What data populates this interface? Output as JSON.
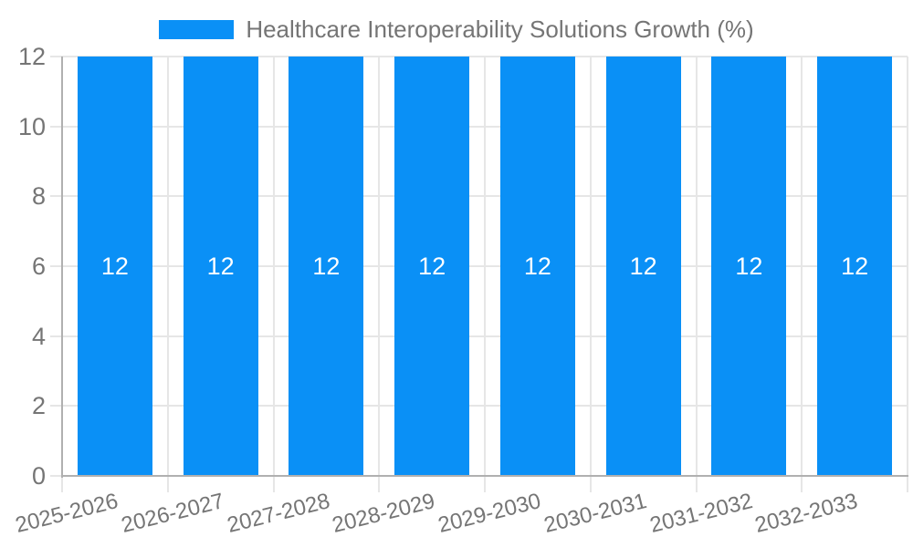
{
  "legend": {
    "label": "Healthcare Interoperability Solutions Growth (%)"
  },
  "chart_data": {
    "type": "bar",
    "title": "Healthcare Interoperability Solutions Growth (%)",
    "categories": [
      "2025-2026",
      "2026-2027",
      "2027-2028",
      "2028-2029",
      "2029-2030",
      "2030-2031",
      "2031-2032",
      "2032-2033"
    ],
    "values": [
      12,
      12,
      12,
      12,
      12,
      12,
      12,
      12
    ],
    "value_labels": [
      "12",
      "12",
      "12",
      "12",
      "12",
      "12",
      "12",
      "12"
    ],
    "xlabel": "",
    "ylabel": "",
    "ylim": [
      0,
      12
    ],
    "yticks": [
      0,
      2,
      4,
      6,
      8,
      10,
      12
    ],
    "grid": true,
    "legend_position": "top-center",
    "colors": {
      "bar": "#0a90f6",
      "gridline": "#e6e6e6",
      "axis": "#b0b0b0",
      "text": "#757575",
      "value_text": "#ffffff"
    }
  }
}
